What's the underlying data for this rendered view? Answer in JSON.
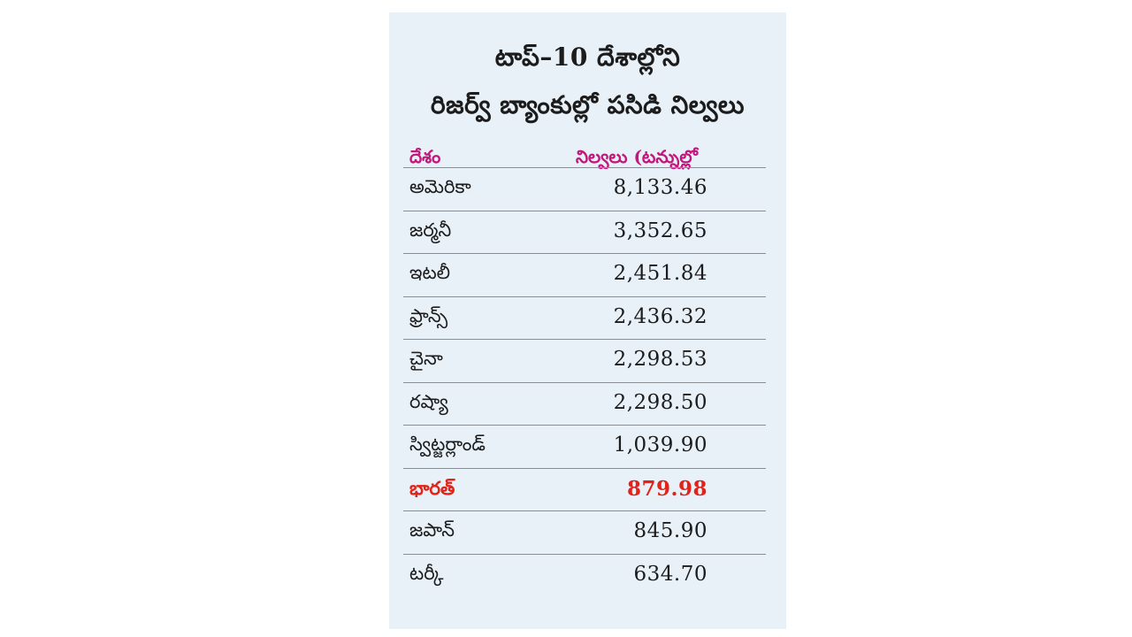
{
  "title": {
    "line1": "టాప్–10 దేశాల్లోని",
    "line2": "రిజర్వ్ బ్యాంకుల్లో పసిడి నిల్వలు"
  },
  "table": {
    "headers": {
      "country": "దేశం",
      "reserves": "నిల్వలు (టన్నుల్లో"
    },
    "rows": [
      {
        "country": "అమెరికా",
        "value": "8,133.46",
        "highlight": false
      },
      {
        "country": "జర్మనీ",
        "value": "3,352.65",
        "highlight": false
      },
      {
        "country": "ఇటలీ",
        "value": "2,451.84",
        "highlight": false
      },
      {
        "country": "ఫ్రాన్స్",
        "value": "2,436.32",
        "highlight": false
      },
      {
        "country": "చైనా",
        "value": "2,298.53",
        "highlight": false
      },
      {
        "country": "రష్యా",
        "value": "2,298.50",
        "highlight": false
      },
      {
        "country": "స్విట్జర్లాండ్",
        "value": "1,039.90",
        "highlight": false
      },
      {
        "country": "భారత్",
        "value": "879.98",
        "highlight": true
      },
      {
        "country": "జపాన్",
        "value": "845.90",
        "highlight": false
      },
      {
        "country": "టర్కీ",
        "value": "634.70",
        "highlight": false
      }
    ]
  },
  "colors": {
    "background": "#e9f1f8",
    "header_text": "#c2177c",
    "highlight_text": "#e2231a",
    "rule": "#8a8f94"
  }
}
